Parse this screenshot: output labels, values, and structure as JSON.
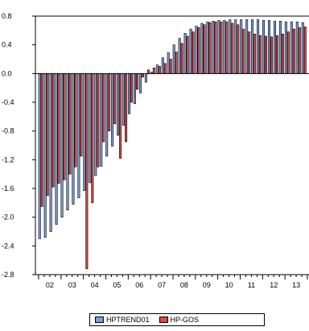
{
  "chart_data": {
    "type": "bar",
    "title": "",
    "xlabel": "",
    "ylabel": "",
    "ylim": [
      -2.8,
      0.8
    ],
    "y_ticks": [
      "0.8",
      "0.4",
      "0.0",
      "-0.4",
      "-0.8",
      "-1.2",
      "-1.6",
      "-2.0",
      "-2.4",
      "-2.8"
    ],
    "y_tick_values": [
      0.8,
      0.4,
      0.0,
      -0.4,
      -0.8,
      -1.2,
      -1.6,
      -2.0,
      -2.4,
      -2.8
    ],
    "x_ticks": [
      "02",
      "03",
      "04",
      "05",
      "06",
      "07",
      "08",
      "09",
      "10",
      "11",
      "12",
      "13"
    ],
    "x_start_year": 2002,
    "quarters_per_year": 4,
    "grid": false,
    "legend_position": "bottom",
    "series": [
      {
        "name": "HPTREND01",
        "color": "#7b9fd6",
        "values": [
          -2.3,
          -2.28,
          -2.2,
          -2.1,
          -2.0,
          -1.9,
          -1.82,
          -1.73,
          -1.63,
          -1.52,
          -1.42,
          -1.29,
          -1.15,
          -1.01,
          -0.86,
          -0.72,
          -0.56,
          -0.42,
          -0.27,
          -0.12,
          0.02,
          0.12,
          0.22,
          0.29,
          0.4,
          0.49,
          0.56,
          0.62,
          0.66,
          0.7,
          0.72,
          0.73,
          0.74,
          0.74,
          0.75,
          0.75,
          0.75,
          0.75,
          0.75,
          0.75,
          0.74,
          0.74,
          0.73,
          0.73,
          0.72,
          0.72,
          0.72,
          0.71
        ]
      },
      {
        "name": "HP-GOS",
        "color": "#e04848",
        "values": [
          -1.85,
          -1.7,
          -1.58,
          -1.53,
          -1.48,
          -1.4,
          -1.3,
          -1.15,
          -2.72,
          -1.8,
          -1.3,
          -0.95,
          -0.8,
          -0.7,
          -1.18,
          -0.95,
          -0.4,
          -0.22,
          -0.05,
          0.05,
          0.08,
          0.1,
          0.14,
          0.2,
          0.3,
          0.42,
          0.52,
          0.58,
          0.64,
          0.68,
          0.71,
          0.72,
          0.72,
          0.72,
          0.7,
          0.68,
          0.62,
          0.58,
          0.55,
          0.53,
          0.52,
          0.51,
          0.53,
          0.55,
          0.58,
          0.62,
          0.64,
          0.65
        ]
      }
    ]
  }
}
